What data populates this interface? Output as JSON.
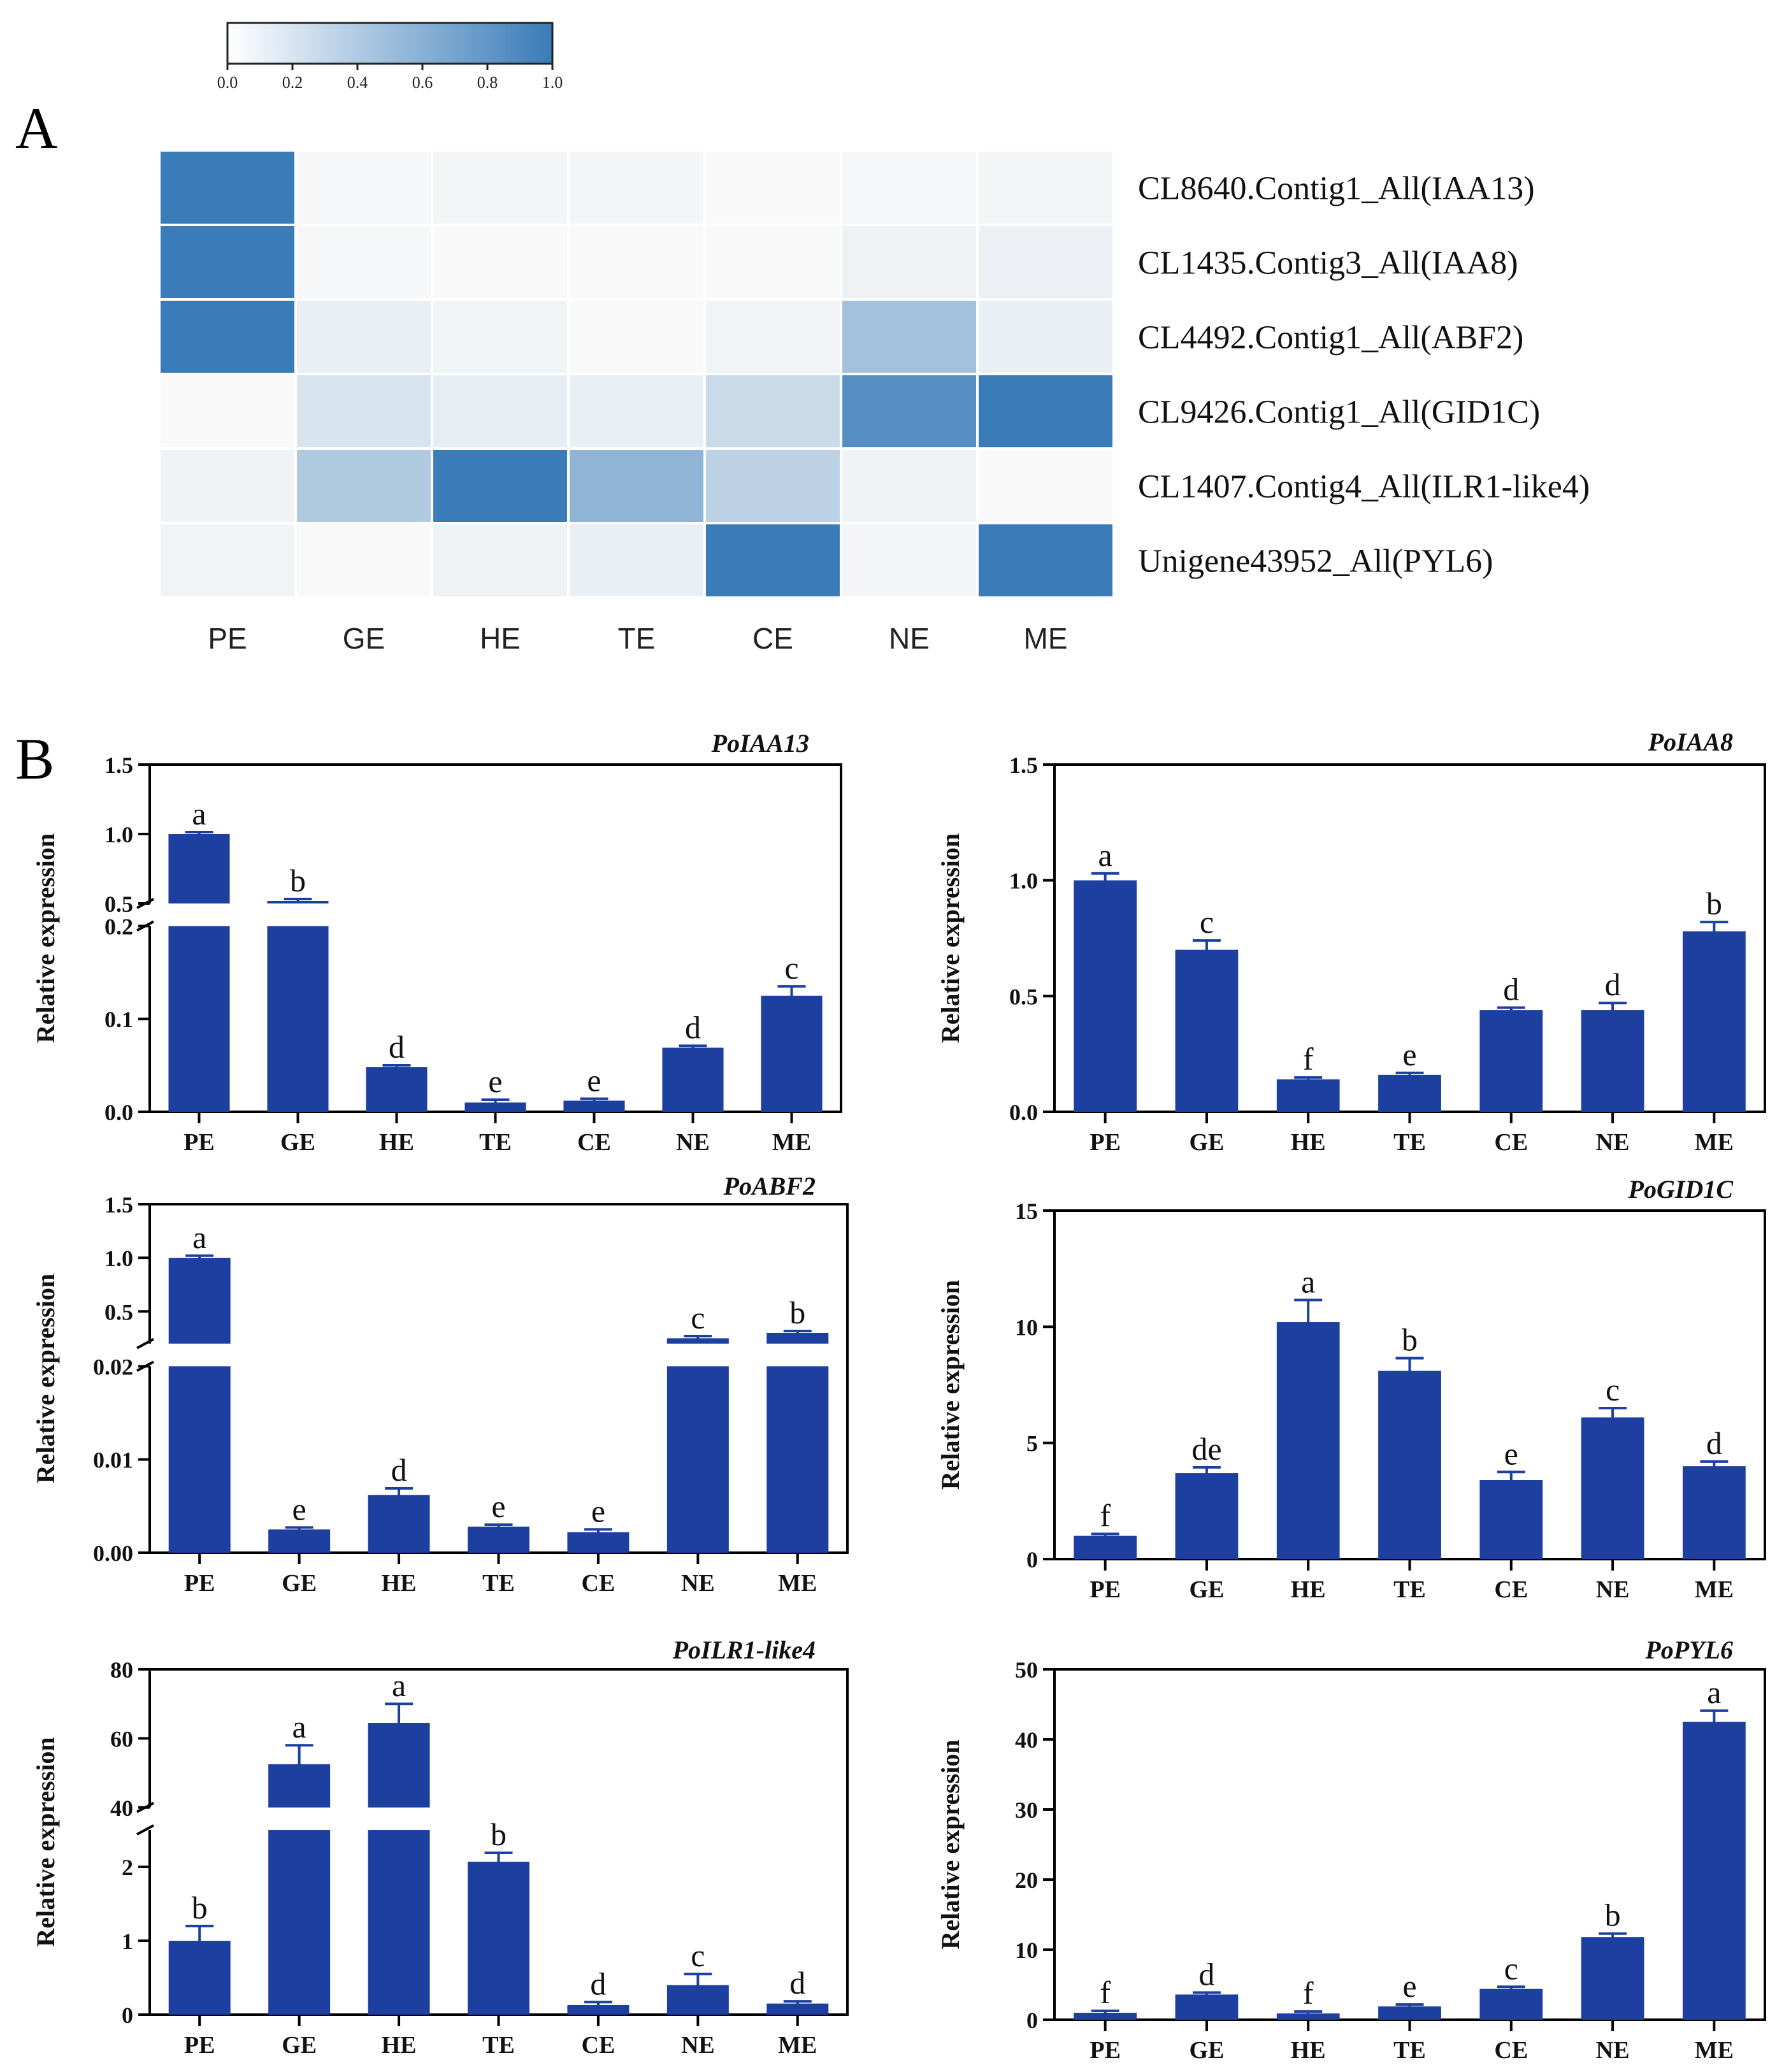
{
  "panel_a": {
    "label": "A",
    "colorbar": {
      "ticks": [
        "0.0",
        "0.2",
        "0.4",
        "0.6",
        "0.8",
        "1.0"
      ],
      "min_color": "#ffffff",
      "max_color": "#3a7cb8"
    },
    "columns": [
      "PE",
      "GE",
      "HE",
      "TE",
      "CE",
      "NE",
      "ME"
    ]
  },
  "panel_b": {
    "label": "B"
  },
  "chart_data": [
    {
      "type": "heatmap",
      "title": "",
      "x": [
        "PE",
        "GE",
        "HE",
        "TE",
        "CE",
        "NE",
        "ME"
      ],
      "y": [
        "CL8640.Contig1_All(IAA13)",
        "CL1435.Contig3_All(IAA8)",
        "CL4492.Contig1_All(ABF2)",
        "CL9426.Contig1_All(GID1C)",
        "CL1407.Contig4_All(ILR1-like4)",
        "Unigene43952_All(PYL6)"
      ],
      "values": [
        [
          1.0,
          0.02,
          0.03,
          0.03,
          0.0,
          0.02,
          0.03
        ],
        [
          1.0,
          0.02,
          0.0,
          0.0,
          0.0,
          0.06,
          0.07
        ],
        [
          1.0,
          0.08,
          0.04,
          0.0,
          0.04,
          0.45,
          0.08
        ],
        [
          0.0,
          0.18,
          0.1,
          0.08,
          0.25,
          0.85,
          1.0
        ],
        [
          0.05,
          0.38,
          1.0,
          0.55,
          0.32,
          0.05,
          0.0
        ],
        [
          0.04,
          0.0,
          0.05,
          0.08,
          1.0,
          0.03,
          1.0
        ]
      ],
      "zlim": [
        0,
        1
      ]
    },
    {
      "type": "bar",
      "title": "PoIAA13",
      "ylabel": "Relative expression",
      "xlabel": "",
      "categories": [
        "PE",
        "GE",
        "HE",
        "TE",
        "CE",
        "NE",
        "ME"
      ],
      "values": [
        1.0,
        0.42,
        0.048,
        0.01,
        0.012,
        0.069,
        0.125
      ],
      "errors": [
        0.005,
        0.02,
        0.002,
        0.003,
        0.002,
        0.002,
        0.01
      ],
      "letters": [
        "a",
        "b",
        "d",
        "e",
        "e",
        "d",
        "c"
      ],
      "broken_axis": {
        "lower": [
          0,
          0.2
        ],
        "upper": [
          0.5,
          1.5
        ]
      },
      "lower_ticks": [
        "0.0",
        "0.1",
        "0.2"
      ],
      "upper_ticks": [
        "0.5",
        "1.0",
        "1.5"
      ]
    },
    {
      "type": "bar",
      "title": "PoIAA8",
      "ylabel": "Relative expression",
      "xlabel": "",
      "categories": [
        "PE",
        "GE",
        "HE",
        "TE",
        "CE",
        "NE",
        "ME"
      ],
      "values": [
        1.0,
        0.7,
        0.14,
        0.16,
        0.44,
        0.44,
        0.78
      ],
      "errors": [
        0.03,
        0.04,
        0.005,
        0.005,
        0.01,
        0.03,
        0.04
      ],
      "letters": [
        "a",
        "c",
        "f",
        "e",
        "d",
        "d",
        "b"
      ],
      "ylim": [
        0,
        1.5
      ],
      "ticks": [
        "0.0",
        "0.5",
        "1.0",
        "1.5"
      ]
    },
    {
      "type": "bar",
      "title": "PoABF2",
      "ylabel": "Relative expression",
      "xlabel": "",
      "categories": [
        "PE",
        "GE",
        "HE",
        "TE",
        "CE",
        "NE",
        "ME"
      ],
      "values": [
        1.0,
        0.0025,
        0.0062,
        0.0028,
        0.0022,
        0.25,
        0.3
      ],
      "errors": [
        0.02,
        0.0002,
        0.0007,
        0.0002,
        0.0003,
        0.02,
        0.01
      ],
      "letters": [
        "a",
        "e",
        "d",
        "e",
        "e",
        "c",
        "b"
      ],
      "broken_axis": {
        "lower": [
          0,
          0.02
        ],
        "upper": [
          0.2,
          1.5
        ]
      },
      "lower_ticks": [
        "0.00",
        "0.01",
        "0.02"
      ],
      "upper_ticks": [
        "0.5",
        "1.0",
        "1.5"
      ]
    },
    {
      "type": "bar",
      "title": "PoGID1C",
      "ylabel": "Relative expression",
      "xlabel": "",
      "categories": [
        "PE",
        "GE",
        "HE",
        "TE",
        "CE",
        "NE",
        "ME"
      ],
      "values": [
        1.0,
        3.7,
        10.2,
        8.1,
        3.4,
        6.1,
        4.0
      ],
      "errors": [
        0.05,
        0.25,
        0.95,
        0.55,
        0.35,
        0.4,
        0.2
      ],
      "letters": [
        "f",
        "de",
        "a",
        "b",
        "e",
        "c",
        "d"
      ],
      "ylim": [
        0,
        15
      ],
      "ticks": [
        "0",
        "5",
        "10",
        "15"
      ]
    },
    {
      "type": "bar",
      "title": "PoILR1-like4",
      "ylabel": "Relative expression",
      "xlabel": "",
      "categories": [
        "PE",
        "GE",
        "HE",
        "TE",
        "CE",
        "NE",
        "ME"
      ],
      "values": [
        1.0,
        52.5,
        64.5,
        2.07,
        0.13,
        0.4,
        0.15
      ],
      "errors": [
        0.2,
        5.5,
        5.5,
        0.12,
        0.04,
        0.15,
        0.03
      ],
      "letters": [
        "b",
        "a",
        "a",
        "b",
        "d",
        "c",
        "d"
      ],
      "broken_axis": {
        "lower": [
          0,
          2.5
        ],
        "upper": [
          40,
          80
        ]
      },
      "lower_ticks": [
        "0",
        "1",
        "2"
      ],
      "upper_ticks": [
        "40",
        "60",
        "80"
      ]
    },
    {
      "type": "bar",
      "title": "PoPYL6",
      "ylabel": "Relative expression",
      "xlabel": "",
      "categories": [
        "PE",
        "GE",
        "HE",
        "TE",
        "CE",
        "NE",
        "ME"
      ],
      "values": [
        1.0,
        3.6,
        0.9,
        1.9,
        4.4,
        11.8,
        42.5
      ],
      "errors": [
        0.1,
        0.15,
        0.1,
        0.1,
        0.3,
        0.5,
        1.6
      ],
      "letters": [
        "f",
        "d",
        "f",
        "e",
        "c",
        "b",
        "a"
      ],
      "ylim": [
        0,
        50
      ],
      "ticks": [
        "0",
        "10",
        "20",
        "30",
        "40",
        "50"
      ]
    }
  ]
}
